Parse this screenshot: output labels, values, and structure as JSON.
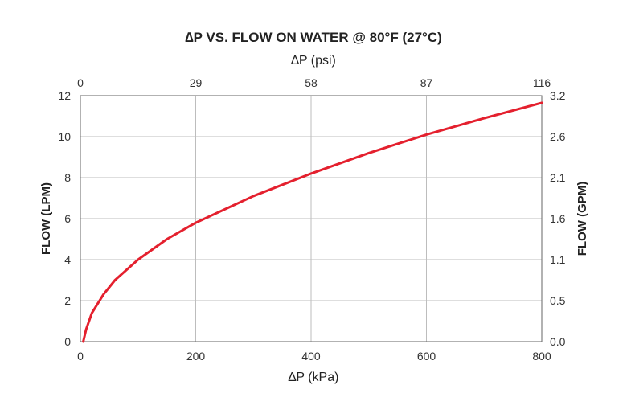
{
  "chart_data": {
    "type": "line",
    "title": "∆P VS. FLOW ON WATER @ 80°F (27°C)",
    "xlabel": "∆P (kPa)",
    "x2label": "∆P (psi)",
    "ylabel": "FLOW (LPM)",
    "y2label": "FLOW (GPM)",
    "xlim": [
      0,
      800
    ],
    "ylim": [
      0,
      12
    ],
    "x_ticks": [
      "0",
      "200",
      "400",
      "600",
      "800"
    ],
    "x2_ticks": [
      "0",
      "29",
      "58",
      "87",
      "116"
    ],
    "y_ticks": [
      "0",
      "2",
      "4",
      "6",
      "8",
      "10",
      "12"
    ],
    "y2_ticks": [
      "0.0",
      "0.5",
      "1.1",
      "1.6",
      "2.1",
      "2.6",
      "3.2"
    ],
    "grid": true,
    "series": [
      {
        "color": "#e4202e",
        "x": [
          5,
          10,
          20,
          40,
          60,
          100,
          150,
          200,
          300,
          400,
          500,
          600,
          700,
          800
        ],
        "y": [
          0.0,
          0.6,
          1.4,
          2.3,
          3.0,
          4.0,
          5.0,
          5.8,
          7.1,
          8.2,
          9.2,
          10.1,
          10.9,
          11.65
        ]
      }
    ]
  }
}
